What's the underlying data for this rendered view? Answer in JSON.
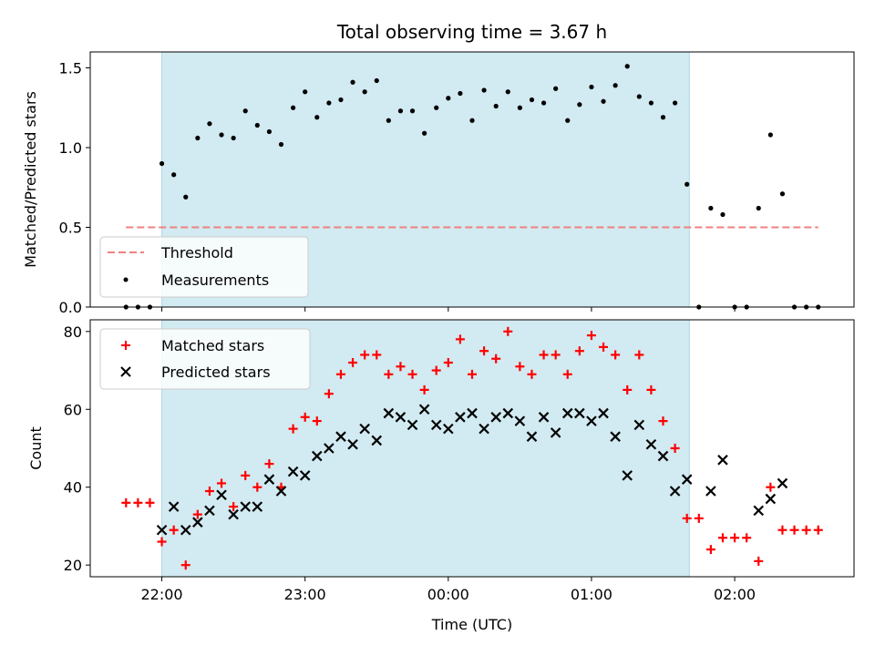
{
  "chart_data": [
    {
      "type": "scatter",
      "title": "Total observing time = 3.67 h",
      "ylabel": "Matched/Predicted stars",
      "ylim": [
        0,
        1.6
      ],
      "yticks": [
        "0.0",
        "0.5",
        "1.0",
        "1.5"
      ],
      "ytick_values": [
        0.0,
        0.5,
        1.0,
        1.5
      ],
      "shaded_region": {
        "x_start": "22:00",
        "x_end": "01:41",
        "color": "#add8e6"
      },
      "threshold": {
        "name": "Threshold",
        "value": 0.5,
        "x_start": "21:45",
        "x_end": "02:35",
        "color": "#f08080"
      },
      "series": [
        {
          "name": "Measurements",
          "color": "#000000",
          "points": [
            [
              "21:45",
              0.0
            ],
            [
              "21:50",
              0.0
            ],
            [
              "21:55",
              0.0
            ],
            [
              "22:00",
              0.9
            ],
            [
              "22:05",
              0.83
            ],
            [
              "22:10",
              0.69
            ],
            [
              "22:15",
              1.06
            ],
            [
              "22:20",
              1.15
            ],
            [
              "22:25",
              1.08
            ],
            [
              "22:30",
              1.06
            ],
            [
              "22:35",
              1.23
            ],
            [
              "22:40",
              1.14
            ],
            [
              "22:45",
              1.1
            ],
            [
              "22:50",
              1.02
            ],
            [
              "22:55",
              1.25
            ],
            [
              "23:00",
              1.35
            ],
            [
              "23:05",
              1.19
            ],
            [
              "23:10",
              1.28
            ],
            [
              "23:15",
              1.3
            ],
            [
              "23:20",
              1.41
            ],
            [
              "23:25",
              1.35
            ],
            [
              "23:30",
              1.42
            ],
            [
              "23:35",
              1.17
            ],
            [
              "23:40",
              1.23
            ],
            [
              "23:45",
              1.23
            ],
            [
              "23:50",
              1.09
            ],
            [
              "23:55",
              1.25
            ],
            [
              "00:00",
              1.31
            ],
            [
              "00:05",
              1.34
            ],
            [
              "00:10",
              1.17
            ],
            [
              "00:15",
              1.36
            ],
            [
              "00:20",
              1.26
            ],
            [
              "00:25",
              1.35
            ],
            [
              "00:30",
              1.25
            ],
            [
              "00:35",
              1.3
            ],
            [
              "00:40",
              1.28
            ],
            [
              "00:45",
              1.37
            ],
            [
              "00:50",
              1.17
            ],
            [
              "00:55",
              1.27
            ],
            [
              "01:00",
              1.38
            ],
            [
              "01:05",
              1.29
            ],
            [
              "01:10",
              1.39
            ],
            [
              "01:15",
              1.51
            ],
            [
              "01:20",
              1.32
            ],
            [
              "01:25",
              1.28
            ],
            [
              "01:30",
              1.19
            ],
            [
              "01:35",
              1.28
            ],
            [
              "01:40",
              0.77
            ],
            [
              "01:45",
              0.0
            ],
            [
              "01:50",
              0.62
            ],
            [
              "01:55",
              0.58
            ],
            [
              "02:00",
              0.0
            ],
            [
              "02:05",
              0.0
            ],
            [
              "02:10",
              0.62
            ],
            [
              "02:15",
              1.08
            ],
            [
              "02:20",
              0.71
            ],
            [
              "02:25",
              0.0
            ],
            [
              "02:30",
              0.0
            ],
            [
              "02:35",
              0.0
            ]
          ]
        }
      ],
      "legend": {
        "placement": "lower-left",
        "entries": [
          "Threshold",
          "Measurements"
        ]
      }
    },
    {
      "type": "scatter",
      "xlabel": "Time (UTC)",
      "ylabel": "Count",
      "ylim": [
        17,
        83
      ],
      "yticks": [
        "20",
        "40",
        "60",
        "80"
      ],
      "ytick_values": [
        20,
        40,
        60,
        80
      ],
      "xlim": [
        "21:30",
        "02:50"
      ],
      "xticks": [
        "22:00",
        "23:00",
        "00:00",
        "01:00",
        "02:00"
      ],
      "xtick_values": [
        "22:00",
        "23:00",
        "00:00",
        "01:00",
        "02:00"
      ],
      "shaded_region": {
        "x_start": "22:00",
        "x_end": "01:41",
        "color": "#add8e6"
      },
      "series": [
        {
          "name": "Matched stars",
          "marker": "+",
          "color": "#ff0000",
          "points": [
            [
              "21:45",
              36
            ],
            [
              "21:50",
              36
            ],
            [
              "21:55",
              36
            ],
            [
              "22:00",
              26
            ],
            [
              "22:05",
              29
            ],
            [
              "22:10",
              20
            ],
            [
              "22:15",
              33
            ],
            [
              "22:20",
              39
            ],
            [
              "22:25",
              41
            ],
            [
              "22:30",
              35
            ],
            [
              "22:35",
              43
            ],
            [
              "22:40",
              40
            ],
            [
              "22:45",
              46
            ],
            [
              "22:50",
              40
            ],
            [
              "22:55",
              55
            ],
            [
              "23:00",
              58
            ],
            [
              "23:05",
              57
            ],
            [
              "23:10",
              64
            ],
            [
              "23:15",
              69
            ],
            [
              "23:20",
              72
            ],
            [
              "23:25",
              74
            ],
            [
              "23:30",
              74
            ],
            [
              "23:35",
              69
            ],
            [
              "23:40",
              71
            ],
            [
              "23:45",
              69
            ],
            [
              "23:50",
              65
            ],
            [
              "23:55",
              70
            ],
            [
              "00:00",
              72
            ],
            [
              "00:05",
              78
            ],
            [
              "00:10",
              69
            ],
            [
              "00:15",
              75
            ],
            [
              "00:20",
              73
            ],
            [
              "00:25",
              80
            ],
            [
              "00:30",
              71
            ],
            [
              "00:35",
              69
            ],
            [
              "00:40",
              74
            ],
            [
              "00:45",
              74
            ],
            [
              "00:50",
              69
            ],
            [
              "00:55",
              75
            ],
            [
              "01:00",
              79
            ],
            [
              "01:05",
              76
            ],
            [
              "01:10",
              74
            ],
            [
              "01:15",
              65
            ],
            [
              "01:20",
              74
            ],
            [
              "01:25",
              65
            ],
            [
              "01:30",
              57
            ],
            [
              "01:35",
              50
            ],
            [
              "01:40",
              32
            ],
            [
              "01:45",
              32
            ],
            [
              "01:50",
              24
            ],
            [
              "01:55",
              27
            ],
            [
              "02:00",
              27
            ],
            [
              "02:05",
              27
            ],
            [
              "02:10",
              21
            ],
            [
              "02:15",
              40
            ],
            [
              "02:20",
              29
            ],
            [
              "02:25",
              29
            ],
            [
              "02:30",
              29
            ],
            [
              "02:35",
              29
            ]
          ]
        },
        {
          "name": "Predicted stars",
          "marker": "x",
          "color": "#000000",
          "points": [
            [
              "22:00",
              29
            ],
            [
              "22:05",
              35
            ],
            [
              "22:10",
              29
            ],
            [
              "22:15",
              31
            ],
            [
              "22:20",
              34
            ],
            [
              "22:25",
              38
            ],
            [
              "22:30",
              33
            ],
            [
              "22:35",
              35
            ],
            [
              "22:40",
              35
            ],
            [
              "22:45",
              42
            ],
            [
              "22:50",
              39
            ],
            [
              "22:55",
              44
            ],
            [
              "23:00",
              43
            ],
            [
              "23:05",
              48
            ],
            [
              "23:10",
              50
            ],
            [
              "23:15",
              53
            ],
            [
              "23:20",
              51
            ],
            [
              "23:25",
              55
            ],
            [
              "23:30",
              52
            ],
            [
              "23:35",
              59
            ],
            [
              "23:40",
              58
            ],
            [
              "23:45",
              56
            ],
            [
              "23:50",
              60
            ],
            [
              "23:55",
              56
            ],
            [
              "00:00",
              55
            ],
            [
              "00:05",
              58
            ],
            [
              "00:10",
              59
            ],
            [
              "00:15",
              55
            ],
            [
              "00:20",
              58
            ],
            [
              "00:25",
              59
            ],
            [
              "00:30",
              57
            ],
            [
              "00:35",
              53
            ],
            [
              "00:40",
              58
            ],
            [
              "00:45",
              54
            ],
            [
              "00:50",
              59
            ],
            [
              "00:55",
              59
            ],
            [
              "01:00",
              57
            ],
            [
              "01:05",
              59
            ],
            [
              "01:10",
              53
            ],
            [
              "01:15",
              43
            ],
            [
              "01:20",
              56
            ],
            [
              "01:25",
              51
            ],
            [
              "01:30",
              48
            ],
            [
              "01:35",
              39
            ],
            [
              "01:40",
              42
            ],
            [
              "01:50",
              39
            ],
            [
              "01:55",
              47
            ],
            [
              "02:10",
              34
            ],
            [
              "02:15",
              37
            ],
            [
              "02:20",
              41
            ]
          ]
        }
      ],
      "legend": {
        "placement": "upper-left",
        "entries": [
          "Matched stars",
          "Predicted stars"
        ]
      }
    }
  ]
}
